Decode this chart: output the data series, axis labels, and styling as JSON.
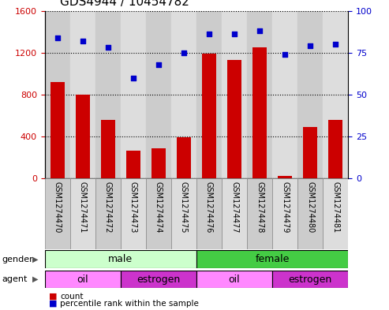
{
  "title": "GDS4944 / 10454782",
  "samples": [
    "GSM1274470",
    "GSM1274471",
    "GSM1274472",
    "GSM1274473",
    "GSM1274474",
    "GSM1274475",
    "GSM1274476",
    "GSM1274477",
    "GSM1274478",
    "GSM1274479",
    "GSM1274480",
    "GSM1274481"
  ],
  "counts": [
    920,
    800,
    560,
    260,
    290,
    390,
    1190,
    1130,
    1250,
    20,
    490,
    560
  ],
  "percentiles": [
    84,
    82,
    78,
    60,
    68,
    75,
    86,
    86,
    88,
    74,
    79,
    80
  ],
  "ylim_left": [
    0,
    1600
  ],
  "ylim_right": [
    0,
    100
  ],
  "yticks_left": [
    0,
    400,
    800,
    1200,
    1600
  ],
  "yticks_right": [
    0,
    25,
    50,
    75,
    100
  ],
  "bar_color": "#cc0000",
  "dot_color": "#0000cc",
  "gender_groups": [
    {
      "label": "male",
      "start": 0,
      "end": 6,
      "color": "#ccffcc"
    },
    {
      "label": "female",
      "start": 6,
      "end": 12,
      "color": "#44cc44"
    }
  ],
  "agent_groups": [
    {
      "label": "oil",
      "start": 0,
      "end": 3,
      "color": "#ff88ff"
    },
    {
      "label": "estrogen",
      "start": 3,
      "end": 6,
      "color": "#cc33cc"
    },
    {
      "label": "oil",
      "start": 6,
      "end": 9,
      "color": "#ff88ff"
    },
    {
      "label": "estrogen",
      "start": 9,
      "end": 12,
      "color": "#cc33cc"
    }
  ],
  "col_bg_even": "#cccccc",
  "col_bg_odd": "#dddddd",
  "border_color": "#888888"
}
